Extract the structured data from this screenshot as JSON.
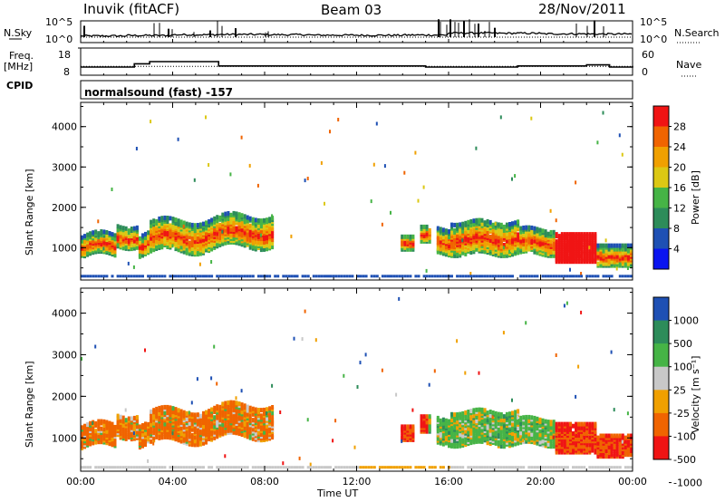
{
  "header": {
    "station": "Inuvik (fitACF)",
    "beam": "Beam 03",
    "date": "28/Nov/2011"
  },
  "strip_labels": {
    "nsky": "N.Sky",
    "nsearch": "N.Search",
    "freq": "Freq.",
    "freq_unit": "[MHz]",
    "nave": "Nave",
    "cpid": "CPID",
    "cpid_value": "normalsound (fast) -157"
  },
  "strip_ticks": {
    "noise_left": [
      "10^5",
      "10^0"
    ],
    "noise_right": [
      "10^5",
      "10^0"
    ],
    "freq_left": [
      "18",
      "8"
    ],
    "nave_right": [
      "60",
      "0"
    ]
  },
  "colors": {
    "power_scale": [
      "#0a14f0",
      "#1e50b4",
      "#2d8c5a",
      "#46b446",
      "#dcc814",
      "#f0a000",
      "#f06400",
      "#f01414"
    ],
    "velocity_scale": [
      "#1e50b4",
      "#2d8c5a",
      "#46b446",
      "#c8c8c8",
      "#f0a000",
      "#f06400",
      "#f01414"
    ]
  },
  "chart_data": [
    {
      "type": "line",
      "panel": "noise",
      "series": [
        {
          "name": "N.Sky"
        },
        {
          "name": "N.Search"
        }
      ],
      "yscale": "log",
      "ylim": [
        1,
        100000
      ],
      "x": [
        "00:00",
        "02:00",
        "04:00",
        "06:00",
        "08:00",
        "10:00",
        "12:00",
        "14:00",
        "16:00",
        "18:00",
        "20:00",
        "22:00",
        "24:00"
      ],
      "values": [
        30,
        60,
        200,
        300,
        200,
        100,
        80,
        120,
        3000,
        2000,
        800,
        600,
        400
      ]
    },
    {
      "type": "line",
      "panel": "frequency / averages",
      "series": [
        {
          "name": "Freq."
        },
        {
          "name": "Nave"
        }
      ],
      "freq_ylim": [
        8,
        18
      ],
      "nave_ylim": [
        0,
        60
      ],
      "freq_x": [
        "00:00",
        "01:30",
        "02:20",
        "03:00",
        "06:00",
        "09:00",
        "12:00",
        "14:00",
        "15:00",
        "17:00",
        "19:00",
        "21:00",
        "22:00",
        "23:00",
        "24:00"
      ],
      "freq_values": [
        10.5,
        10.5,
        12,
        13,
        11,
        11,
        11,
        11,
        10.5,
        10.5,
        11,
        11,
        11.5,
        10.5,
        11
      ]
    },
    {
      "type": "heatmap",
      "panel": "power",
      "xlabel": "Time UT",
      "ylabel": "Slant Range [km]",
      "x_ticks": [
        "00:00",
        "04:00",
        "08:00",
        "12:00",
        "16:00",
        "20:00",
        "00:00"
      ],
      "y_ticks": [
        "1000",
        "2000",
        "3000",
        "4000"
      ],
      "ylim": [
        200,
        4600
      ],
      "colorbar_label": "Power [dB]",
      "colorbar_ticks": [
        "4",
        "8",
        "12",
        "16",
        "20",
        "24",
        "28"
      ]
    },
    {
      "type": "heatmap",
      "panel": "velocity",
      "xlabel": "Time UT",
      "ylabel": "Slant Range [km]",
      "x_ticks": [
        "00:00",
        "04:00",
        "08:00",
        "12:00",
        "16:00",
        "20:00",
        "00:00"
      ],
      "y_ticks": [
        "1000",
        "2000",
        "3000",
        "4000"
      ],
      "ylim": [
        200,
        4600
      ],
      "colorbar_label": "Velocity [m s⁻¹]",
      "colorbar_ticks": [
        "1000",
        "500",
        "100",
        "25",
        "-25",
        "-100",
        "-500",
        "-1000"
      ]
    }
  ],
  "x_axis_label": "Time UT"
}
